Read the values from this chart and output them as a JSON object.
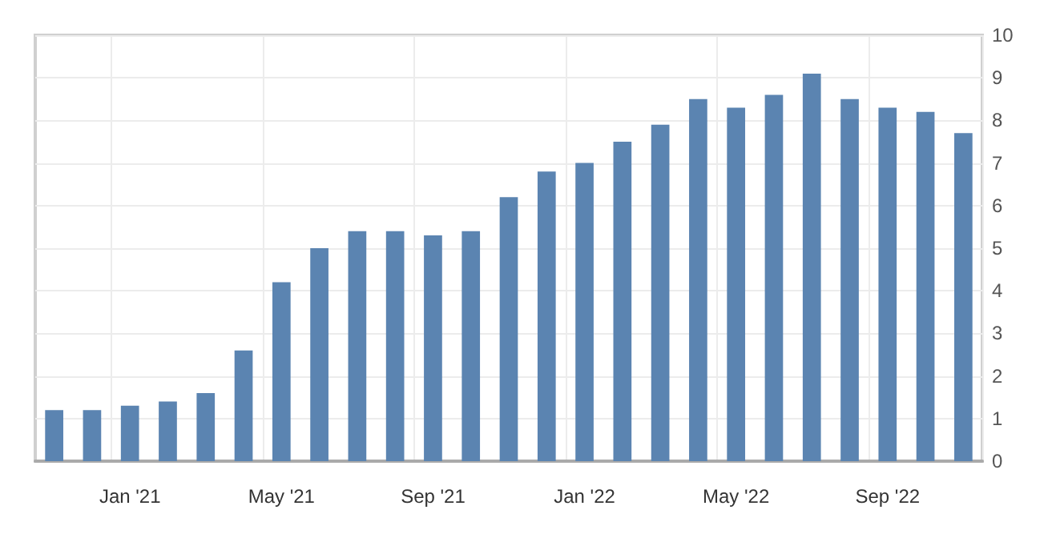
{
  "chart_data": {
    "type": "bar",
    "categories": [
      null,
      null,
      "Jan '21",
      null,
      null,
      null,
      "May '21",
      null,
      null,
      null,
      "Sep '21",
      null,
      null,
      null,
      "Jan '22",
      null,
      null,
      null,
      "May '22",
      null,
      null,
      null,
      "Sep '22",
      null,
      null
    ],
    "values": [
      1.2,
      1.2,
      1.3,
      1.4,
      1.6,
      2.6,
      4.2,
      5.0,
      5.4,
      5.4,
      5.3,
      5.4,
      6.2,
      6.8,
      7.0,
      7.5,
      7.9,
      8.5,
      8.3,
      8.6,
      9.1,
      8.5,
      8.3,
      8.2,
      7.7
    ],
    "color": "#5b84b1",
    "ylim": [
      0,
      10
    ],
    "yticks": [
      0,
      1,
      2,
      3,
      4,
      5,
      6,
      7,
      8,
      9,
      10
    ],
    "grid": true
  }
}
